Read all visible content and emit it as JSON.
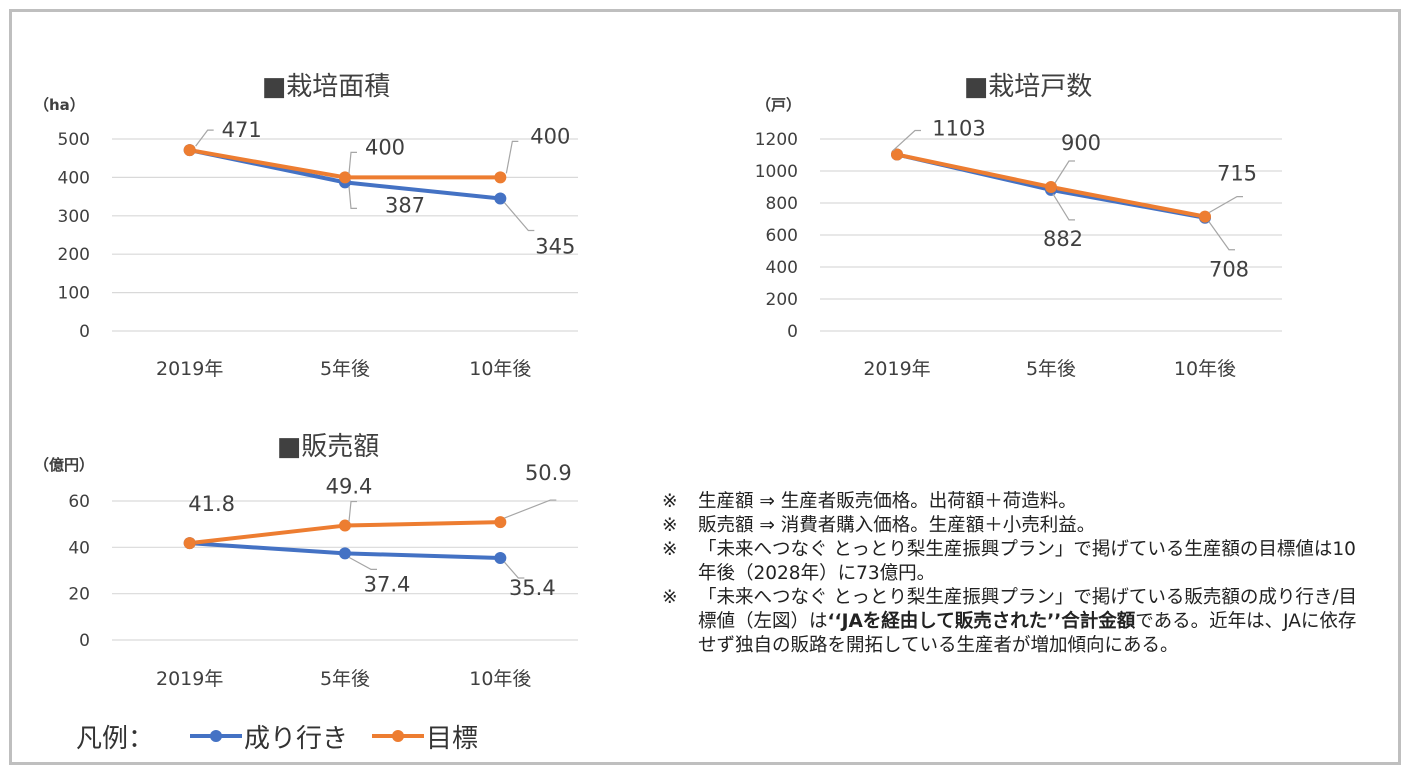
{
  "colors": {
    "actual": "#4472C4",
    "target": "#ED7D31",
    "grid": "#d9d9d9",
    "axis_text": "#404040",
    "leader": "#a6a6a6"
  },
  "chart_data": [
    {
      "type": "line",
      "title": "■栽培面積",
      "unit": "（ha）",
      "categories": [
        "2019年",
        "5年後",
        "10年後"
      ],
      "ylim": [
        0,
        500
      ],
      "yticks": [
        0,
        100,
        200,
        300,
        400,
        500
      ],
      "grid": true,
      "series": [
        {
          "name": "成り行き",
          "values": [
            471,
            387,
            345
          ]
        },
        {
          "name": "目標",
          "values": [
            471,
            400,
            400
          ]
        }
      ]
    },
    {
      "type": "line",
      "title": "■栽培戸数",
      "unit": "（戸）",
      "categories": [
        "2019年",
        "5年後",
        "10年後"
      ],
      "ylim": [
        0,
        1200
      ],
      "yticks": [
        0,
        200,
        400,
        600,
        800,
        1000,
        1200
      ],
      "grid": true,
      "series": [
        {
          "name": "成り行き",
          "values": [
            1103,
            882,
            708
          ]
        },
        {
          "name": "目標",
          "values": [
            1103,
            900,
            715
          ]
        }
      ]
    },
    {
      "type": "line",
      "title": "■販売額",
      "unit": "（億円）",
      "categories": [
        "2019年",
        "5年後",
        "10年後"
      ],
      "ylim": [
        0,
        60
      ],
      "yticks": [
        0,
        20,
        40,
        60
      ],
      "grid": true,
      "series": [
        {
          "name": "成り行き",
          "values": [
            41.8,
            37.4,
            35.4
          ]
        },
        {
          "name": "目標",
          "values": [
            41.8,
            49.4,
            50.9
          ]
        }
      ]
    }
  ],
  "legend": {
    "title": "凡例：",
    "items": [
      {
        "label": "成り行き",
        "color": "#4472C4"
      },
      {
        "label": "目標",
        "color": "#ED7D31"
      }
    ]
  },
  "notes": [
    {
      "mark": "※",
      "parts": [
        {
          "text": "生産額 ⇒ 生産者販売価格。出荷額＋荷造料。"
        }
      ]
    },
    {
      "mark": "※",
      "parts": [
        {
          "text": "販売額 ⇒ 消費者購入価格。生産額＋小売利益。"
        }
      ]
    },
    {
      "mark": "※",
      "parts": [
        {
          "text": "「未来へつなぐ とっとり梨生産振興プラン」で掲げている生産額の目標値は10年後（2028年）に73億円。"
        }
      ]
    },
    {
      "mark": "※",
      "parts": [
        {
          "text": "「未来へつなぐ とっとり梨生産振興プラン」で掲げている販売額の成り行き/目標値（左図）は"
        },
        {
          "text": "‘‘JAを経由して販売された’’合計金額",
          "bold": true
        },
        {
          "text": "である。近年は、JAに依存せず独自の販路を開拓している生産者が増加傾向にある。"
        }
      ]
    }
  ]
}
